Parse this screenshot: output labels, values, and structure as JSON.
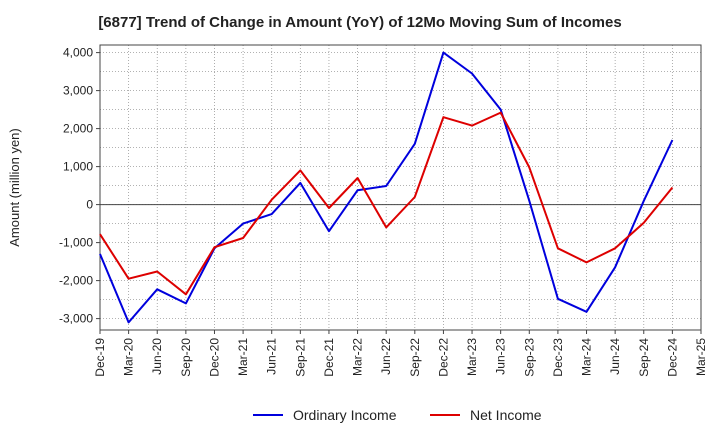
{
  "chart_data": {
    "type": "line",
    "title": "[6877]  Trend of Change in Amount (YoY) of 12Mo Moving Sum of Incomes",
    "ylabel": "Amount (million yen)",
    "xlabel": "",
    "ylim": [
      -3300,
      4200
    ],
    "yticks": [
      -3000,
      -2000,
      -1000,
      0,
      1000,
      2000,
      3000,
      4000
    ],
    "ytick_labels": [
      "-3,000",
      "-2,000",
      "-1,000",
      "0",
      "1,000",
      "2,000",
      "3,000",
      "4,000"
    ],
    "categories": [
      "Dec-19",
      "Mar-20",
      "Jun-20",
      "Sep-20",
      "Dec-20",
      "Mar-21",
      "Jun-21",
      "Sep-21",
      "Dec-21",
      "Mar-22",
      "Jun-22",
      "Sep-22",
      "Dec-22",
      "Mar-23",
      "Jun-23",
      "Sep-23",
      "Dec-23",
      "Mar-24",
      "Jun-24",
      "Sep-24",
      "Dec-24",
      "Mar-25"
    ],
    "grid": true,
    "legend_position": "bottom",
    "series": [
      {
        "name": "Ordinary Income",
        "color": "#0000dd",
        "values": [
          -1300,
          -3100,
          -2230,
          -2600,
          -1150,
          -500,
          -250,
          570,
          -700,
          380,
          490,
          1600,
          4000,
          3450,
          2500,
          100,
          -2480,
          -2820,
          -1650,
          100,
          1700,
          null
        ]
      },
      {
        "name": "Net Income",
        "color": "#dd0000",
        "values": [
          -780,
          -1950,
          -1760,
          -2360,
          -1120,
          -880,
          130,
          900,
          -90,
          700,
          -600,
          200,
          2300,
          2080,
          2420,
          980,
          -1150,
          -1520,
          -1150,
          -480,
          450,
          null
        ]
      }
    ]
  }
}
